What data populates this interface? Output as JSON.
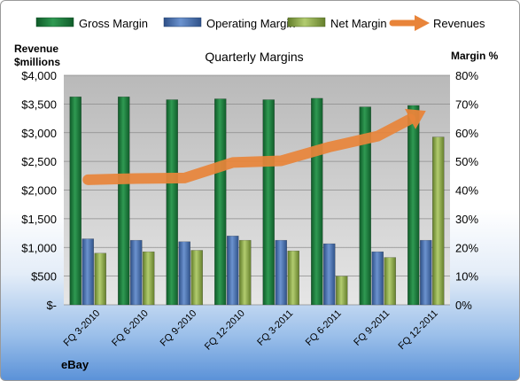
{
  "chart_data": {
    "type": "bar",
    "title": "Quarterly Margins",
    "y_left_label_line1": "Revenue",
    "y_left_label_line2": "$millions",
    "y_right_label": "Margin %",
    "footer_label": "eBay",
    "categories": [
      "FQ 3-2010",
      "FQ 6-2010",
      "FQ 9-2010",
      "FQ 12-2010",
      "FQ 3-2011",
      "FQ 6-2011",
      "FQ 9-2011",
      "FQ 12-2011"
    ],
    "series": [
      {
        "name": "Gross Margin",
        "axis": "right",
        "kind": "bar",
        "color": "#1e7a3c",
        "values": [
          72.5,
          72.5,
          71.5,
          71.8,
          71.5,
          72.0,
          69.0,
          69.5
        ]
      },
      {
        "name": "Operating Margin",
        "axis": "right",
        "kind": "bar",
        "color": "#4a72b0",
        "values": [
          23.0,
          22.5,
          22.0,
          24.0,
          22.5,
          21.3,
          18.5,
          22.5
        ]
      },
      {
        "name": "Net Margin",
        "axis": "right",
        "kind": "bar",
        "color": "#8fae4c",
        "values": [
          18.0,
          18.5,
          19.0,
          22.5,
          18.8,
          10.0,
          16.5,
          58.5
        ]
      },
      {
        "name": "Revenues",
        "axis": "left",
        "kind": "line-arrow",
        "color": "#e8843a",
        "values": [
          2180,
          2200,
          2210,
          2480,
          2510,
          2750,
          2940,
          3380
        ]
      }
    ],
    "y_left": {
      "min": 0,
      "max": 4000,
      "ticks": [
        "$-",
        "$500",
        "$1,000",
        "$1,500",
        "$2,000",
        "$2,500",
        "$3,000",
        "$3,500",
        "$4,000"
      ]
    },
    "y_right": {
      "min": 0,
      "max": 80,
      "ticks": [
        "0%",
        "10%",
        "20%",
        "30%",
        "40%",
        "50%",
        "60%",
        "70%",
        "80%"
      ]
    },
    "grid": true,
    "legend_position": "top"
  }
}
